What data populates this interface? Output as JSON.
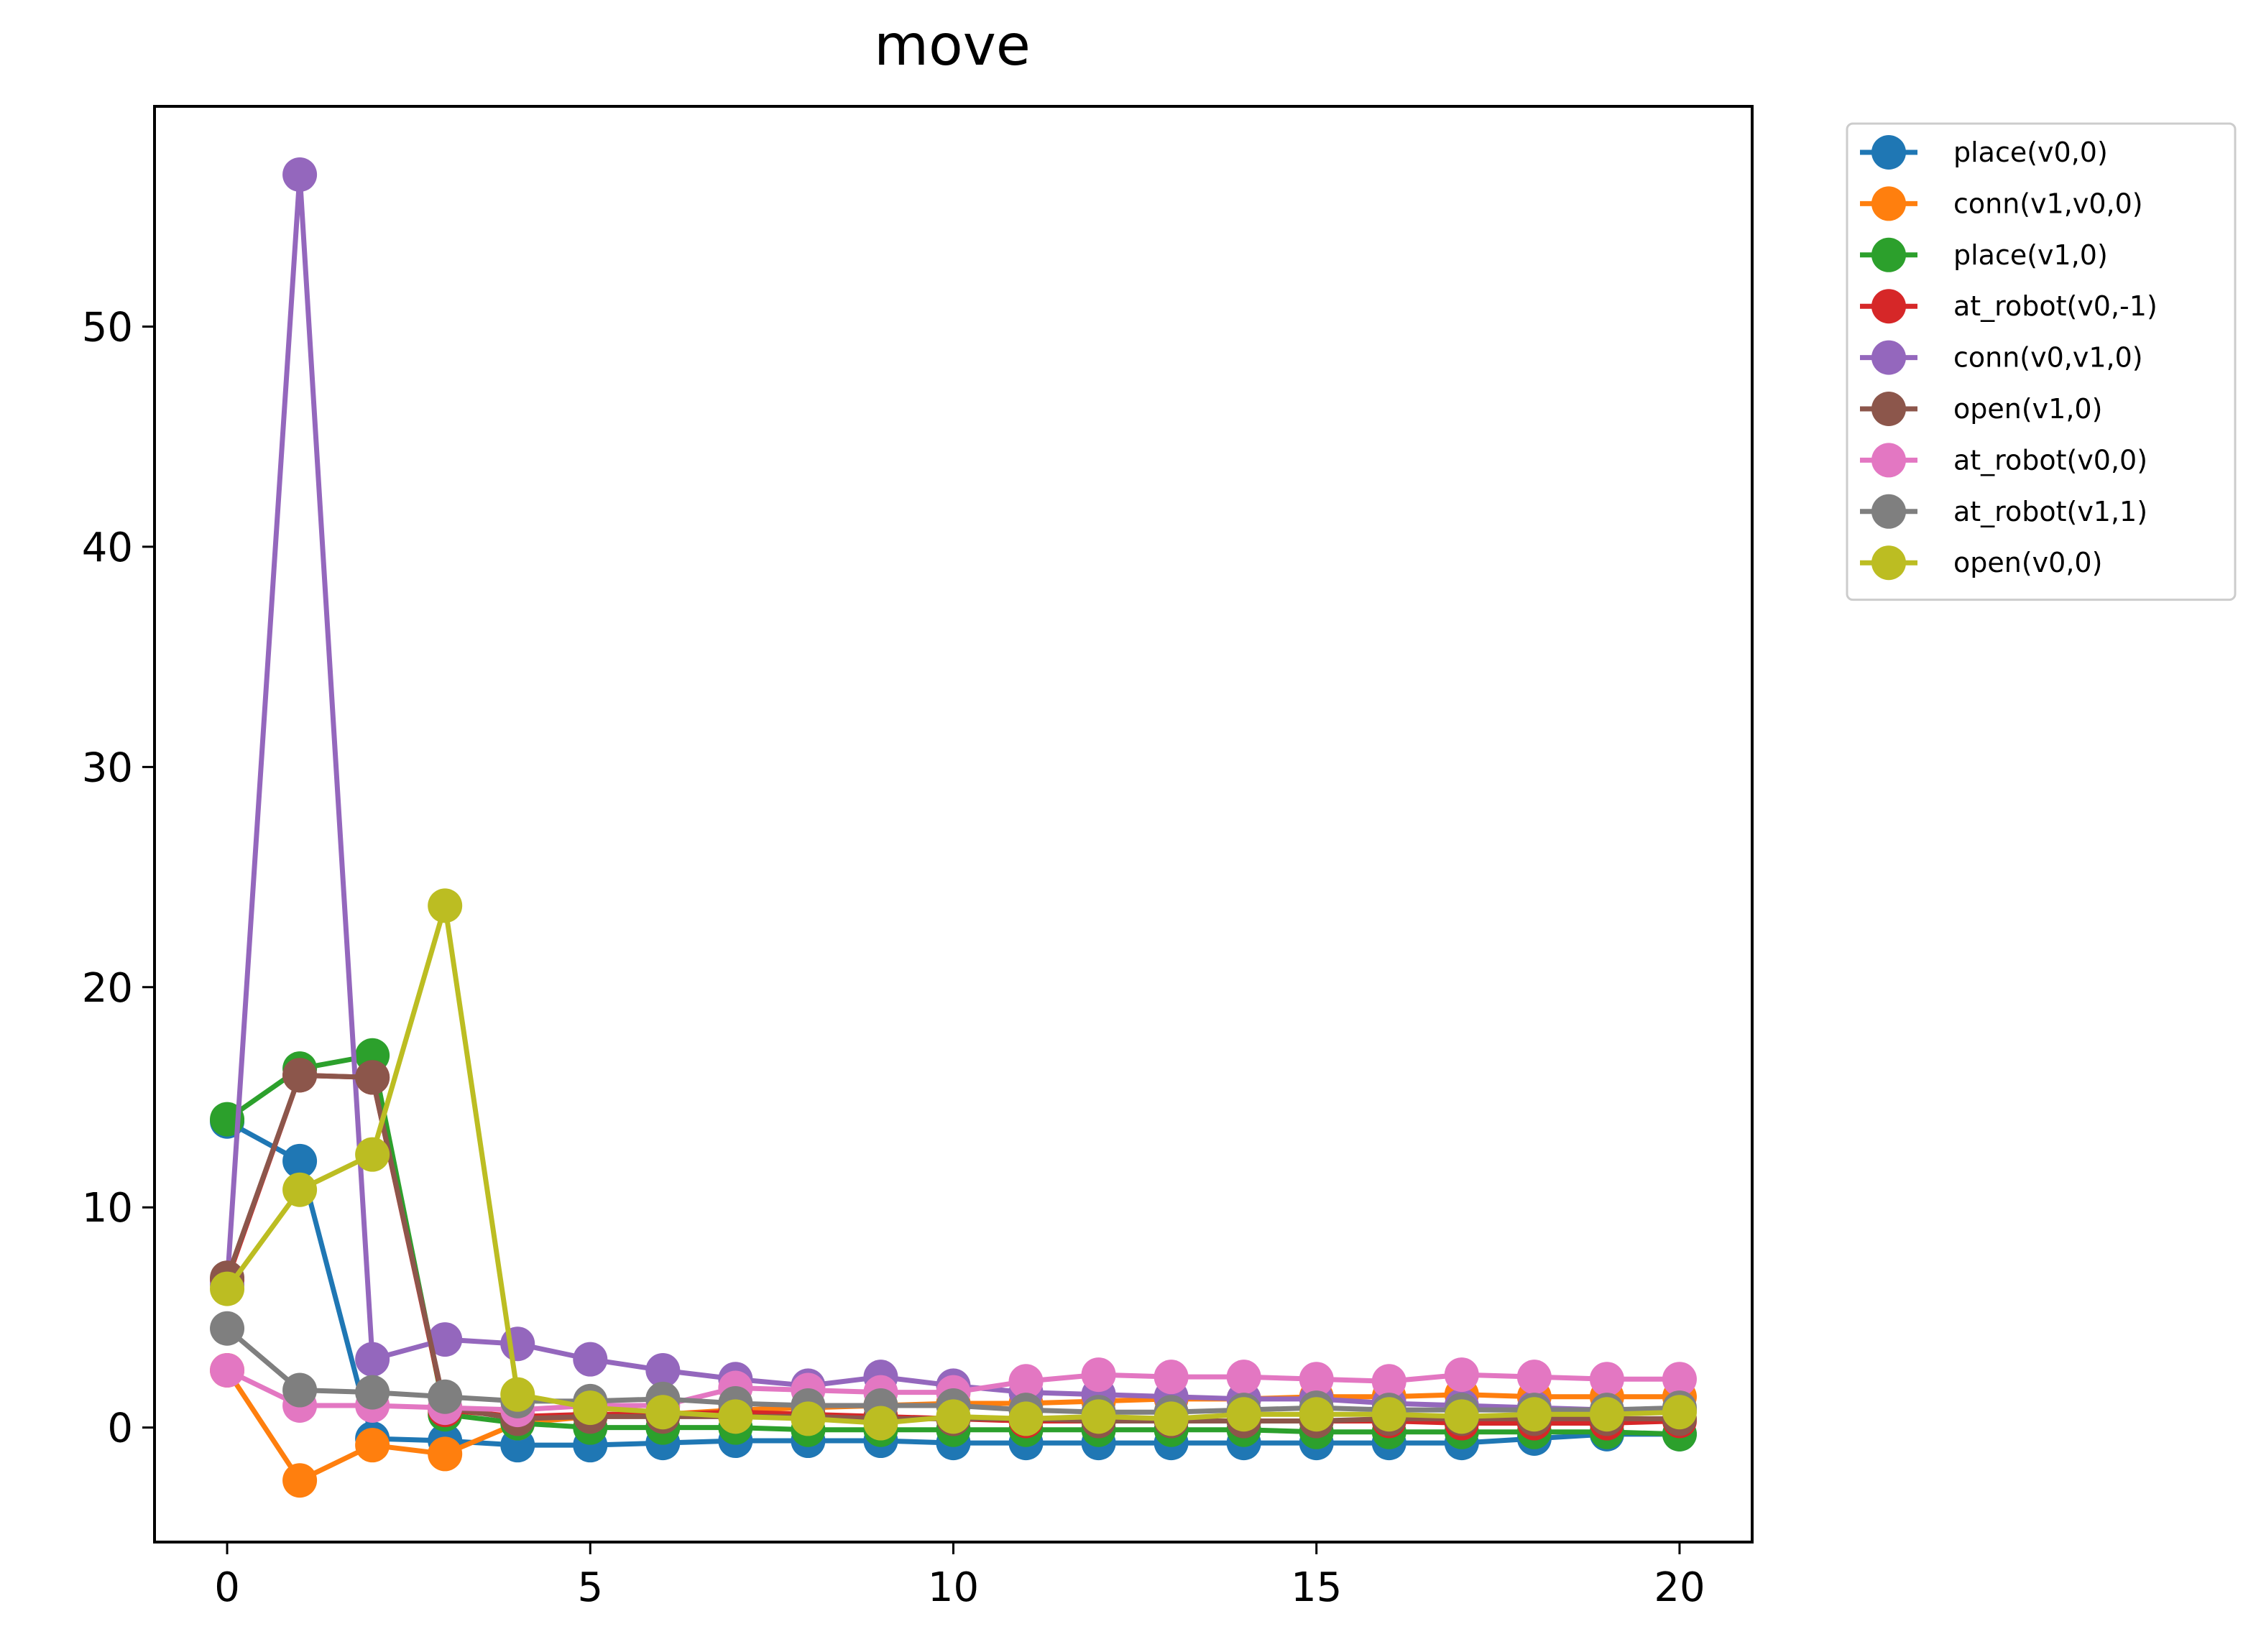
{
  "chart_data": {
    "type": "line",
    "title": "move",
    "xlabel": "",
    "ylabel": "",
    "xlim": [
      -1,
      21
    ],
    "ylim": [
      -5.2,
      60.0
    ],
    "xticks": [
      0,
      5,
      10,
      15,
      20
    ],
    "yticks": [
      0,
      10,
      20,
      30,
      40,
      50
    ],
    "grid": false,
    "legend_position": "outside-top-right",
    "x": [
      0,
      1,
      2,
      3,
      4,
      5,
      6,
      7,
      8,
      9,
      10,
      11,
      12,
      13,
      14,
      15,
      16,
      17,
      18,
      19,
      20
    ],
    "series": [
      {
        "name": "place(v0,0)",
        "color": "#1f77b4",
        "values": [
          13.9,
          12.1,
          -0.5,
          -0.6,
          -0.8,
          -0.8,
          -0.7,
          -0.6,
          -0.6,
          -0.6,
          -0.7,
          -0.7,
          -0.7,
          -0.7,
          -0.7,
          -0.7,
          -0.7,
          -0.7,
          -0.5,
          -0.3,
          -0.3
        ]
      },
      {
        "name": "conn(v1,v0,0)",
        "color": "#ff7f0e",
        "values": [
          2.6,
          -2.4,
          -0.8,
          -1.2,
          0.2,
          0.5,
          0.6,
          0.8,
          0.9,
          1.0,
          1.1,
          1.1,
          1.2,
          1.3,
          1.3,
          1.4,
          1.4,
          1.5,
          1.4,
          1.4,
          1.4
        ]
      },
      {
        "name": "place(v1,0)",
        "color": "#2ca02c",
        "values": [
          14.0,
          16.3,
          16.9,
          0.6,
          0.2,
          0.0,
          0.0,
          0.0,
          -0.1,
          -0.1,
          -0.1,
          -0.1,
          -0.1,
          -0.1,
          -0.1,
          -0.2,
          -0.2,
          -0.2,
          -0.2,
          -0.2,
          -0.3
        ]
      },
      {
        "name": "at_robot(v0,-1)",
        "color": "#d62728",
        "values": [
          6.7,
          16.0,
          15.9,
          0.8,
          0.5,
          0.6,
          0.6,
          0.7,
          0.6,
          0.5,
          0.4,
          0.3,
          0.3,
          0.3,
          0.3,
          0.3,
          0.3,
          0.2,
          0.2,
          0.2,
          0.3
        ]
      },
      {
        "name": "conn(v0,v1,0)",
        "color": "#9467bd",
        "values": [
          6.5,
          56.9,
          3.1,
          4.0,
          3.8,
          3.1,
          2.6,
          2.2,
          1.9,
          2.3,
          1.9,
          1.6,
          1.5,
          1.4,
          1.3,
          1.3,
          1.1,
          1.0,
          0.9,
          0.8,
          0.8
        ]
      },
      {
        "name": "open(v1,0)",
        "color": "#8c564b",
        "values": [
          6.8,
          16.0,
          15.9,
          0.9,
          0.4,
          0.5,
          0.5,
          0.5,
          0.5,
          0.4,
          0.4,
          0.4,
          0.3,
          0.3,
          0.3,
          0.3,
          0.4,
          0.4,
          0.4,
          0.4,
          0.4
        ]
      },
      {
        "name": "at_robot(v0,0)",
        "color": "#e377c2",
        "values": [
          2.6,
          1.0,
          1.0,
          0.9,
          0.8,
          1.0,
          1.0,
          1.8,
          1.7,
          1.6,
          1.6,
          2.1,
          2.4,
          2.3,
          2.3,
          2.2,
          2.1,
          2.4,
          2.3,
          2.2,
          2.2
        ]
      },
      {
        "name": "at_robot(v1,1)",
        "color": "#7f7f7f",
        "values": [
          4.5,
          1.7,
          1.6,
          1.4,
          1.2,
          1.2,
          1.3,
          1.1,
          1.0,
          1.0,
          1.0,
          0.8,
          0.7,
          0.7,
          0.8,
          0.9,
          0.8,
          0.8,
          0.8,
          0.8,
          0.9
        ]
      },
      {
        "name": "open(v0,0)",
        "color": "#bcbd22",
        "values": [
          6.3,
          10.8,
          12.4,
          23.7,
          1.5,
          0.9,
          0.7,
          0.5,
          0.4,
          0.2,
          0.5,
          0.4,
          0.5,
          0.4,
          0.6,
          0.6,
          0.6,
          0.5,
          0.6,
          0.6,
          0.7
        ]
      }
    ]
  }
}
